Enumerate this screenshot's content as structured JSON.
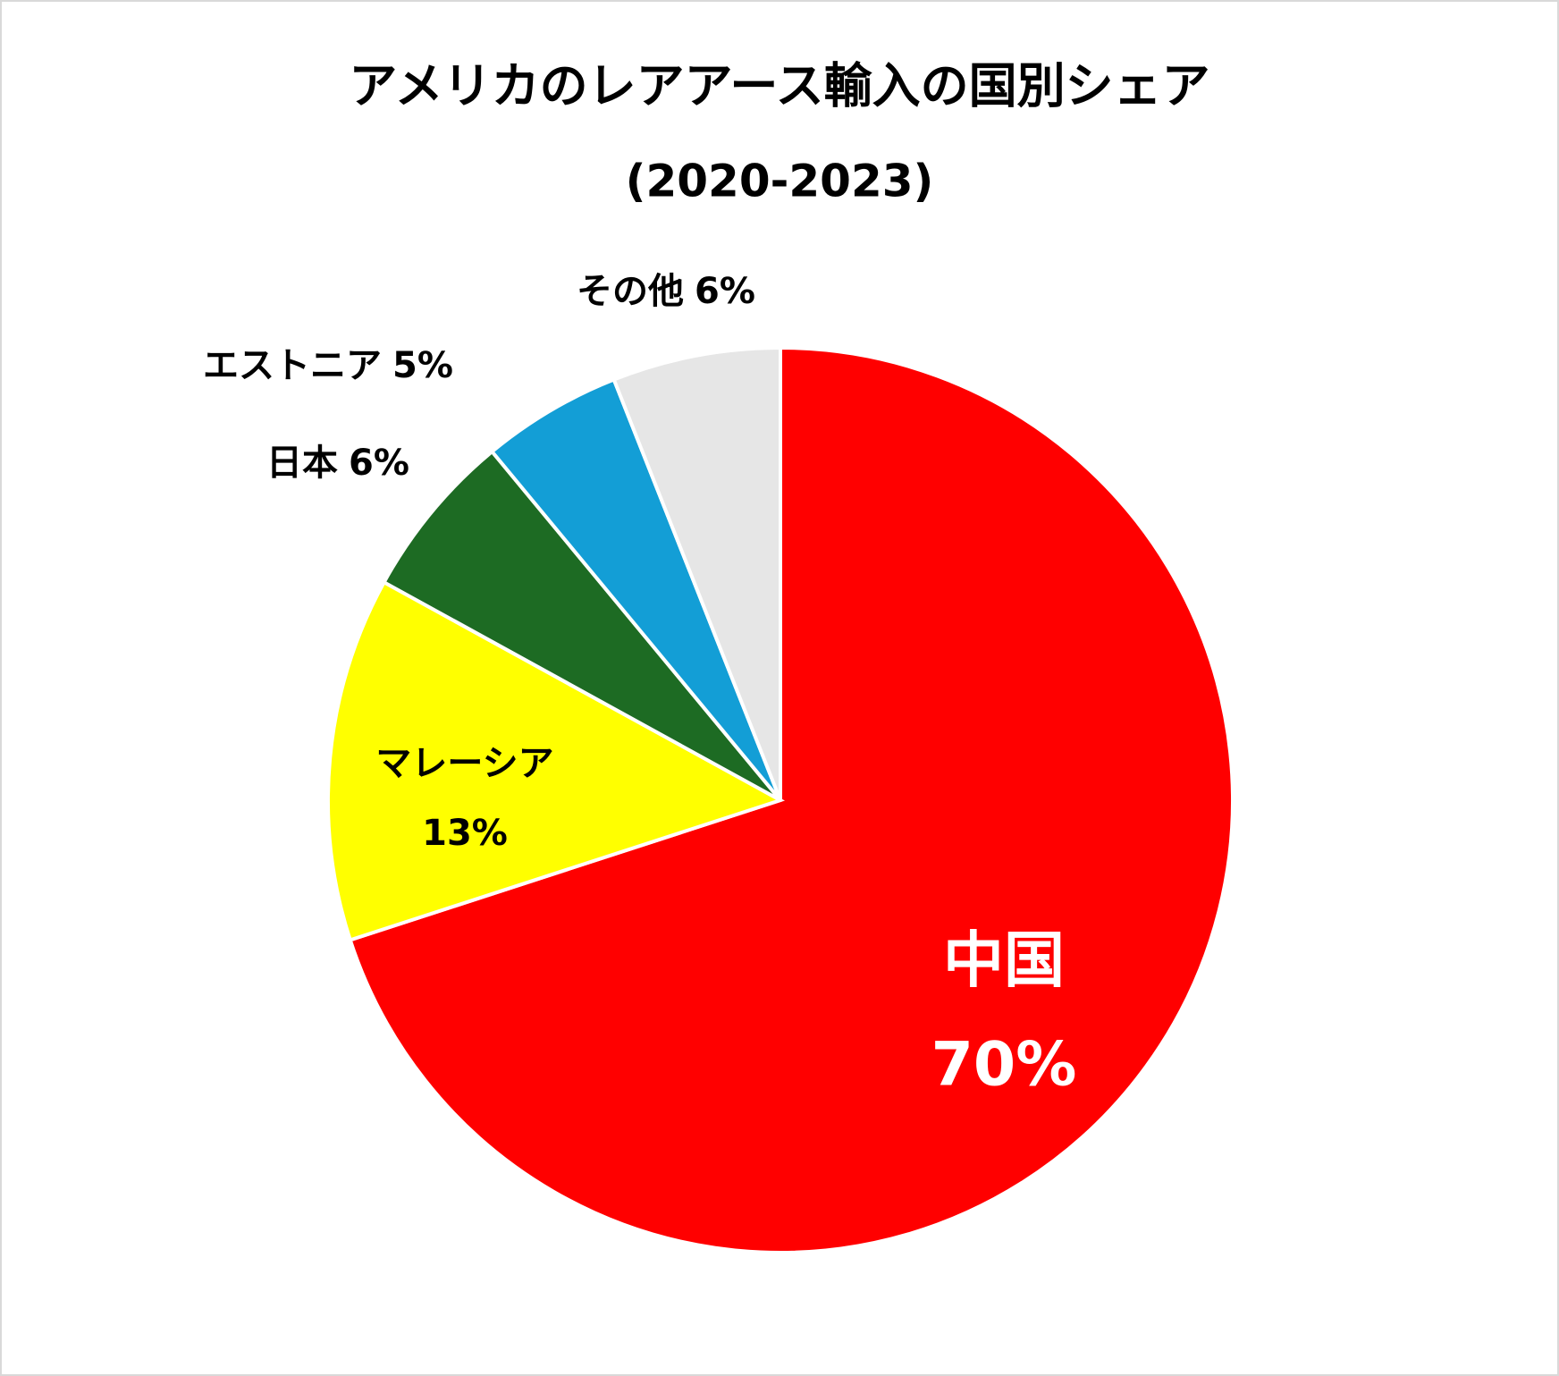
{
  "chart_data": {
    "type": "pie",
    "title": "アメリカのレアアース輸入の国別シェア",
    "subtitle": "(2020-2023)",
    "categories": [
      "中国",
      "マレーシア",
      "日本",
      "エストニア",
      "その他"
    ],
    "values": [
      70,
      13,
      6,
      5,
      6
    ],
    "value_labels": [
      "70%",
      "13%",
      "6%",
      "5%",
      "6%"
    ],
    "colors": [
      "#ff0000",
      "#ffff00",
      "#1d6b23",
      "#139ed6",
      "#e6e6e6"
    ]
  }
}
